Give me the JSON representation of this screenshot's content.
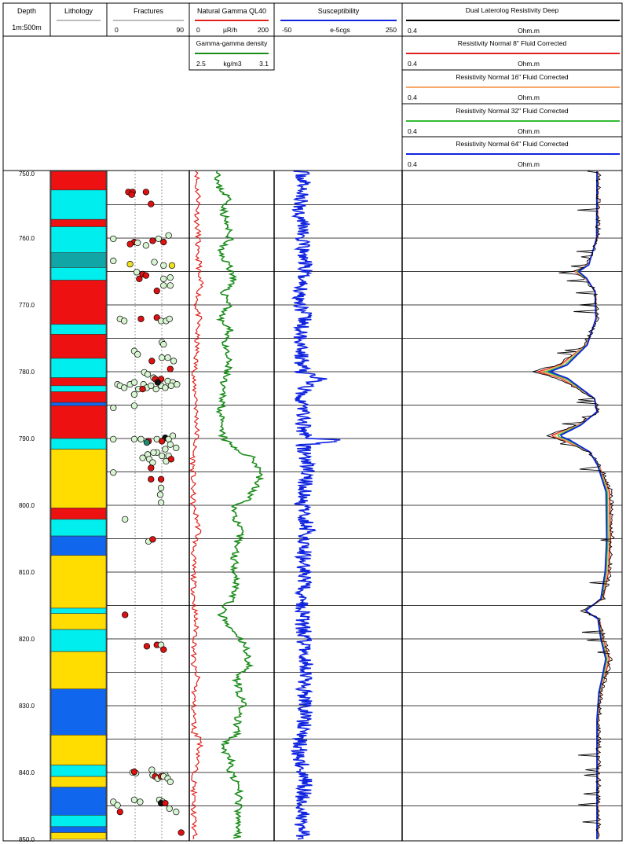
{
  "header": {
    "depth": {
      "title": "Depth",
      "scale": "1m:500m"
    },
    "lithology": {
      "title": "Lithology"
    },
    "fractures": {
      "title": "Fractures",
      "min": "0",
      "max": "90"
    },
    "gamma": {
      "title": "Natural Gamma QL40",
      "min": "0",
      "unit": "µR/h",
      "max": "200",
      "color": "#e0201c"
    },
    "density": {
      "title": "Gamma-gamma density",
      "min": "2.5",
      "unit": "kg/m3",
      "max": "3.1",
      "color": "#1a8c1a"
    },
    "susceptibility": {
      "title": "Susceptibility",
      "min": "-50",
      "unit": "e-5cgs",
      "max": "250",
      "color": "#1024e0"
    },
    "resistivity": [
      {
        "title": "Dual Laterolog Resistivity Deep",
        "min": "0.4",
        "unit": "Ohm.m",
        "color": "#000000"
      },
      {
        "title": "Resistivity Normal 8\" Fluid Corrected",
        "min": "0.4",
        "unit": "Ohm.m",
        "color": "#e0201c"
      },
      {
        "title": "Resistivity Normal 16\" Fluid Corrected",
        "min": "0.4",
        "unit": "Ohm.m",
        "color": "#f5a86a"
      },
      {
        "title": "Resistivity Normal 32\" Fluid Corrected",
        "min": "0.4",
        "unit": "Ohm.m",
        "color": "#33bb33"
      },
      {
        "title": "Resistivity Normal 64\" Fluid Corrected",
        "min": "0.4",
        "unit": "Ohm.m",
        "color": "#1024e0"
      }
    ]
  },
  "chart_data": {
    "type": "line",
    "depth_range": [
      750,
      850
    ],
    "depth_ticks": [
      "750.0",
      "760.0",
      "770.0",
      "780.0",
      "790.0",
      "800.0",
      "810.0",
      "820.0",
      "830.0",
      "840.0",
      "850.0"
    ],
    "lithology": [
      {
        "top": 750.0,
        "base": 752.8,
        "color": "#ee1111"
      },
      {
        "top": 752.8,
        "base": 757.2,
        "color": "#00eeee"
      },
      {
        "top": 757.2,
        "base": 758.3,
        "color": "#ee1111"
      },
      {
        "top": 758.3,
        "base": 762.2,
        "color": "#00eeee"
      },
      {
        "top": 762.2,
        "base": 764.4,
        "color": "#11a5a5"
      },
      {
        "top": 764.4,
        "base": 766.3,
        "color": "#00eeee"
      },
      {
        "top": 766.3,
        "base": 772.9,
        "color": "#ee1111"
      },
      {
        "top": 772.9,
        "base": 774.4,
        "color": "#00eeee"
      },
      {
        "top": 774.4,
        "base": 778.0,
        "color": "#ee1111"
      },
      {
        "top": 778.0,
        "base": 780.9,
        "color": "#00eeee"
      },
      {
        "top": 780.9,
        "base": 782.1,
        "color": "#ee1111"
      },
      {
        "top": 782.1,
        "base": 783.0,
        "color": "#00eeee"
      },
      {
        "top": 783.0,
        "base": 784.6,
        "color": "#ee1111"
      },
      {
        "top": 784.6,
        "base": 785.1,
        "color": "#1166ee"
      },
      {
        "top": 785.1,
        "base": 790.0,
        "color": "#ee1111"
      },
      {
        "top": 790.0,
        "base": 791.6,
        "color": "#00eeee"
      },
      {
        "top": 791.6,
        "base": 800.4,
        "color": "#ffdd00"
      },
      {
        "top": 800.4,
        "base": 802.1,
        "color": "#ee1111"
      },
      {
        "top": 802.1,
        "base": 804.6,
        "color": "#00eeee"
      },
      {
        "top": 804.6,
        "base": 807.5,
        "color": "#1166ee"
      },
      {
        "top": 807.5,
        "base": 815.4,
        "color": "#ffdd00"
      },
      {
        "top": 815.4,
        "base": 816.2,
        "color": "#00eeee"
      },
      {
        "top": 816.2,
        "base": 818.6,
        "color": "#ffdd00"
      },
      {
        "top": 818.6,
        "base": 821.9,
        "color": "#00eeee"
      },
      {
        "top": 821.9,
        "base": 827.5,
        "color": "#ffdd00"
      },
      {
        "top": 827.5,
        "base": 834.4,
        "color": "#1166ee"
      },
      {
        "top": 834.4,
        "base": 838.9,
        "color": "#ffdd00"
      },
      {
        "top": 838.9,
        "base": 840.6,
        "color": "#00eeee"
      },
      {
        "top": 840.6,
        "base": 842.2,
        "color": "#ffdd00"
      },
      {
        "top": 842.2,
        "base": 846.4,
        "color": "#1166ee"
      },
      {
        "top": 846.4,
        "base": 848.1,
        "color": "#00eeee"
      },
      {
        "top": 848.1,
        "base": 849.0,
        "color": "#1166ee"
      },
      {
        "top": 849.0,
        "base": 850.0,
        "color": "#ffdd00"
      }
    ],
    "fracture_colors": {
      "r": "#dd1111",
      "g": "#d8f5d2",
      "y": "#f0e020",
      "t": "#1f8a6e",
      "k": "#111111"
    },
    "fractures": [
      [
        753.1,
        22,
        "r"
      ],
      [
        753.1,
        27,
        "r"
      ],
      [
        753.5,
        26,
        "r"
      ],
      [
        753.1,
        43,
        "r"
      ],
      [
        754.9,
        49,
        "r"
      ],
      [
        760.1,
        4,
        "g"
      ],
      [
        760.6,
        29,
        "r"
      ],
      [
        760.9,
        24,
        "r"
      ],
      [
        760.7,
        33,
        "g"
      ],
      [
        760.4,
        51,
        "r"
      ],
      [
        760.1,
        58,
        "g"
      ],
      [
        759.6,
        70,
        "g"
      ],
      [
        760.6,
        64,
        "r"
      ],
      [
        761.1,
        43,
        "g"
      ],
      [
        763.4,
        4,
        "g"
      ],
      [
        763.9,
        24,
        "y"
      ],
      [
        764.1,
        74,
        "y"
      ],
      [
        763.6,
        53,
        "g"
      ],
      [
        764.1,
        64,
        "g"
      ],
      [
        765.1,
        32,
        "g"
      ],
      [
        765.4,
        39,
        "r"
      ],
      [
        766.1,
        35,
        "r"
      ],
      [
        765.6,
        43,
        "r"
      ],
      [
        765.9,
        72,
        "g"
      ],
      [
        766.1,
        64,
        "g"
      ],
      [
        767.1,
        64,
        "g"
      ],
      [
        767.1,
        72,
        "g"
      ],
      [
        767.9,
        56,
        "r"
      ],
      [
        772.1,
        12,
        "g"
      ],
      [
        772.4,
        17,
        "g"
      ],
      [
        772.1,
        37,
        "r"
      ],
      [
        771.9,
        56,
        "r"
      ],
      [
        772.4,
        61,
        "g"
      ],
      [
        772.4,
        67,
        "g"
      ],
      [
        772.1,
        71,
        "g"
      ],
      [
        775.6,
        62,
        "g"
      ],
      [
        775.9,
        64,
        "g"
      ],
      [
        776.9,
        29,
        "g"
      ],
      [
        777.4,
        33,
        "g"
      ],
      [
        777.9,
        62,
        "g"
      ],
      [
        777.9,
        69,
        "g"
      ],
      [
        778.4,
        76,
        "g"
      ],
      [
        778.4,
        50,
        "r"
      ],
      [
        779.6,
        72,
        "r"
      ],
      [
        780.1,
        41,
        "g"
      ],
      [
        780.4,
        45,
        "g"
      ],
      [
        780.9,
        52,
        "g"
      ],
      [
        781.1,
        54,
        "r"
      ],
      [
        781.1,
        61,
        "r"
      ],
      [
        781.4,
        69,
        "g"
      ],
      [
        781.6,
        75,
        "g"
      ],
      [
        781.9,
        80,
        "g"
      ],
      [
        781.9,
        9,
        "g"
      ],
      [
        782.1,
        12,
        "g"
      ],
      [
        782.4,
        17,
        "g"
      ],
      [
        781.9,
        24,
        "g"
      ],
      [
        781.6,
        29,
        "g"
      ],
      [
        782.6,
        34,
        "g"
      ],
      [
        781.9,
        40,
        "g"
      ],
      [
        782.4,
        44,
        "g"
      ],
      [
        782.1,
        49,
        "g"
      ],
      [
        782.6,
        55,
        "g"
      ],
      [
        782.1,
        61,
        "g"
      ],
      [
        782.4,
        66,
        "g"
      ],
      [
        782.1,
        73,
        "g"
      ],
      [
        781.6,
        57,
        "k"
      ],
      [
        782.6,
        39,
        "r"
      ],
      [
        783.4,
        29,
        "g"
      ],
      [
        785.4,
        4,
        "g"
      ],
      [
        785.1,
        29,
        "g"
      ],
      [
        790.1,
        4,
        "g"
      ],
      [
        790.1,
        29,
        "g"
      ],
      [
        790.1,
        37,
        "g"
      ],
      [
        790.4,
        46,
        "r"
      ],
      [
        790.6,
        44,
        "t"
      ],
      [
        790.1,
        56,
        "g"
      ],
      [
        789.9,
        66,
        "k"
      ],
      [
        790.4,
        62,
        "r"
      ],
      [
        790.1,
        70,
        "g"
      ],
      [
        789.6,
        75,
        "g"
      ],
      [
        790.9,
        72,
        "g"
      ],
      [
        791.4,
        79,
        "g"
      ],
      [
        791.6,
        66,
        "g"
      ],
      [
        792.1,
        56,
        "g"
      ],
      [
        792.4,
        45,
        "g"
      ],
      [
        792.1,
        52,
        "g"
      ],
      [
        792.6,
        62,
        "g"
      ],
      [
        792.9,
        39,
        "g"
      ],
      [
        793.1,
        47,
        "g"
      ],
      [
        793.6,
        51,
        "g"
      ],
      [
        793.4,
        67,
        "g"
      ],
      [
        792.6,
        70,
        "g"
      ],
      [
        793.1,
        73,
        "r"
      ],
      [
        794.4,
        49,
        "r"
      ],
      [
        795.1,
        4,
        "g"
      ],
      [
        796.1,
        49,
        "r"
      ],
      [
        796.1,
        61,
        "r"
      ],
      [
        797.4,
        61,
        "g"
      ],
      [
        798.4,
        60,
        "g"
      ],
      [
        799.6,
        61,
        "g"
      ],
      [
        802.1,
        18,
        "g"
      ],
      [
        805.4,
        46,
        "g"
      ],
      [
        805.1,
        51,
        "r"
      ],
      [
        816.4,
        18,
        "r"
      ],
      [
        821.1,
        44,
        "r"
      ],
      [
        820.9,
        56,
        "r"
      ],
      [
        820.9,
        61,
        "g"
      ],
      [
        821.6,
        64,
        "r"
      ],
      [
        840.0,
        27,
        "g"
      ],
      [
        840.1,
        31,
        "g"
      ],
      [
        839.9,
        29,
        "r"
      ],
      [
        839.6,
        50,
        "g"
      ],
      [
        840.4,
        51,
        "g"
      ],
      [
        840.6,
        54,
        "r"
      ],
      [
        840.9,
        57,
        "g"
      ],
      [
        840.6,
        61,
        "r"
      ],
      [
        840.4,
        66,
        "g"
      ],
      [
        840.6,
        64,
        "g"
      ],
      [
        840.9,
        69,
        "g"
      ],
      [
        841.4,
        72,
        "g"
      ],
      [
        844.1,
        29,
        "g"
      ],
      [
        844.4,
        36,
        "g"
      ],
      [
        844.4,
        4,
        "g"
      ],
      [
        844.9,
        9,
        "g"
      ],
      [
        845.9,
        12,
        "r"
      ],
      [
        844.1,
        59,
        "g"
      ],
      [
        844.4,
        63,
        "g"
      ],
      [
        844.6,
        61,
        "k"
      ],
      [
        845.4,
        71,
        "g"
      ],
      [
        845.9,
        79,
        "g"
      ],
      [
        844.6,
        66,
        "r"
      ],
      [
        849.0,
        85,
        "r"
      ]
    ],
    "gamma": [
      [
        750,
        18
      ],
      [
        752,
        13
      ],
      [
        754,
        20
      ],
      [
        756,
        16
      ],
      [
        758,
        15
      ],
      [
        760,
        19
      ],
      [
        762,
        13
      ],
      [
        764,
        22
      ],
      [
        765.5,
        17
      ],
      [
        767,
        25
      ],
      [
        770,
        13
      ],
      [
        772,
        20
      ],
      [
        774,
        15
      ],
      [
        777,
        14
      ],
      [
        780,
        10
      ],
      [
        782,
        6
      ],
      [
        784,
        14
      ],
      [
        786,
        13
      ],
      [
        788,
        15
      ],
      [
        790,
        14
      ],
      [
        791.5,
        7
      ],
      [
        794,
        5
      ],
      [
        797,
        5
      ],
      [
        800,
        5
      ],
      [
        802,
        15
      ],
      [
        804,
        20
      ],
      [
        806,
        8
      ],
      [
        808,
        6
      ],
      [
        812,
        7
      ],
      [
        815,
        9
      ],
      [
        817,
        11
      ],
      [
        819,
        13
      ],
      [
        822,
        7
      ],
      [
        824,
        6
      ],
      [
        826,
        17
      ],
      [
        828,
        8
      ],
      [
        830,
        7
      ],
      [
        832,
        8
      ],
      [
        834,
        7
      ],
      [
        835,
        25
      ],
      [
        838,
        17
      ],
      [
        840,
        9
      ],
      [
        844,
        6
      ],
      [
        848,
        8
      ],
      [
        850,
        9
      ]
    ],
    "density": [
      [
        750,
        2.72
      ],
      [
        752,
        2.69
      ],
      [
        754,
        2.78
      ],
      [
        756,
        2.74
      ],
      [
        758,
        2.76
      ],
      [
        760,
        2.79
      ],
      [
        762,
        2.7
      ],
      [
        764,
        2.78
      ],
      [
        766,
        2.82
      ],
      [
        768,
        2.74
      ],
      [
        770,
        2.79
      ],
      [
        772,
        2.71
      ],
      [
        774,
        2.79
      ],
      [
        776,
        2.74
      ],
      [
        778,
        2.77
      ],
      [
        780,
        2.77
      ],
      [
        782,
        2.72
      ],
      [
        784,
        2.74
      ],
      [
        786,
        2.72
      ],
      [
        788,
        2.71
      ],
      [
        790,
        2.74
      ],
      [
        791.5,
        2.82
      ],
      [
        793,
        2.96
      ],
      [
        795,
        3.02
      ],
      [
        797,
        2.98
      ],
      [
        799,
        2.92
      ],
      [
        800.5,
        2.81
      ],
      [
        802,
        2.83
      ],
      [
        804,
        2.86
      ],
      [
        806,
        2.84
      ],
      [
        808,
        2.82
      ],
      [
        810,
        2.83
      ],
      [
        812,
        2.84
      ],
      [
        814,
        2.8
      ],
      [
        816,
        2.72
      ],
      [
        818,
        2.76
      ],
      [
        820,
        2.86
      ],
      [
        822,
        2.92
      ],
      [
        824,
        2.92
      ],
      [
        826,
        2.84
      ],
      [
        828,
        2.86
      ],
      [
        830,
        2.88
      ],
      [
        832,
        2.84
      ],
      [
        834,
        2.84
      ],
      [
        836,
        2.73
      ],
      [
        838,
        2.79
      ],
      [
        840,
        2.79
      ],
      [
        842,
        2.84
      ],
      [
        844,
        2.86
      ],
      [
        846,
        2.84
      ],
      [
        848,
        2.85
      ],
      [
        850,
        2.84
      ]
    ],
    "susceptibility": [
      [
        750,
        10
      ],
      [
        752,
        15
      ],
      [
        754,
        8
      ],
      [
        756,
        5
      ],
      [
        758,
        18
      ],
      [
        760,
        10
      ],
      [
        762,
        12
      ],
      [
        764,
        20
      ],
      [
        766,
        15
      ],
      [
        768,
        8
      ],
      [
        770,
        10
      ],
      [
        772,
        18
      ],
      [
        774,
        6
      ],
      [
        776,
        14
      ],
      [
        778,
        10
      ],
      [
        780,
        12
      ],
      [
        781.2,
        60
      ],
      [
        782,
        20
      ],
      [
        784,
        12
      ],
      [
        786,
        16
      ],
      [
        788,
        14
      ],
      [
        790,
        20
      ],
      [
        790.2,
        110
      ],
      [
        791,
        15
      ],
      [
        793,
        22
      ],
      [
        795,
        25
      ],
      [
        797,
        18
      ],
      [
        799,
        14
      ],
      [
        800,
        10
      ],
      [
        802,
        20
      ],
      [
        804,
        25
      ],
      [
        806,
        18
      ],
      [
        808,
        15
      ],
      [
        810,
        20
      ],
      [
        812,
        14
      ],
      [
        814,
        10
      ],
      [
        816,
        12
      ],
      [
        818,
        14
      ],
      [
        820,
        18
      ],
      [
        822,
        16
      ],
      [
        824,
        20
      ],
      [
        826,
        18
      ],
      [
        828,
        16
      ],
      [
        830,
        20
      ],
      [
        832,
        18
      ],
      [
        834,
        14
      ],
      [
        836,
        5
      ],
      [
        838,
        8
      ],
      [
        840,
        16
      ],
      [
        842,
        18
      ],
      [
        844,
        14
      ],
      [
        846,
        16
      ],
      [
        848,
        12
      ],
      [
        850,
        14
      ]
    ],
    "resistivity_shape": [
      [
        750,
        0
      ],
      [
        760,
        -0.1
      ],
      [
        764,
        -2.5
      ],
      [
        765,
        -5.6
      ],
      [
        766,
        -3.2
      ],
      [
        768,
        -0.6
      ],
      [
        772,
        -0.3
      ],
      [
        776,
        -3.0
      ],
      [
        779,
        -9.2
      ],
      [
        780,
        -14.5
      ],
      [
        781,
        -9.0
      ],
      [
        784,
        -0.8
      ],
      [
        786,
        0
      ],
      [
        788,
        -5.0
      ],
      [
        789.6,
        -11.5
      ],
      [
        790.2,
        -8.5
      ],
      [
        792,
        -2.2
      ],
      [
        794,
        0.2
      ],
      [
        798,
        2.8
      ],
      [
        805,
        3.0
      ],
      [
        810,
        2.5
      ],
      [
        814,
        1.2
      ],
      [
        815.8,
        -3.5
      ],
      [
        817,
        0.3
      ],
      [
        820,
        1.2
      ],
      [
        823,
        2.7
      ],
      [
        826,
        1.5
      ],
      [
        828,
        0.6
      ],
      [
        832,
        0
      ],
      [
        840,
        0
      ],
      [
        850,
        0
      ]
    ]
  }
}
